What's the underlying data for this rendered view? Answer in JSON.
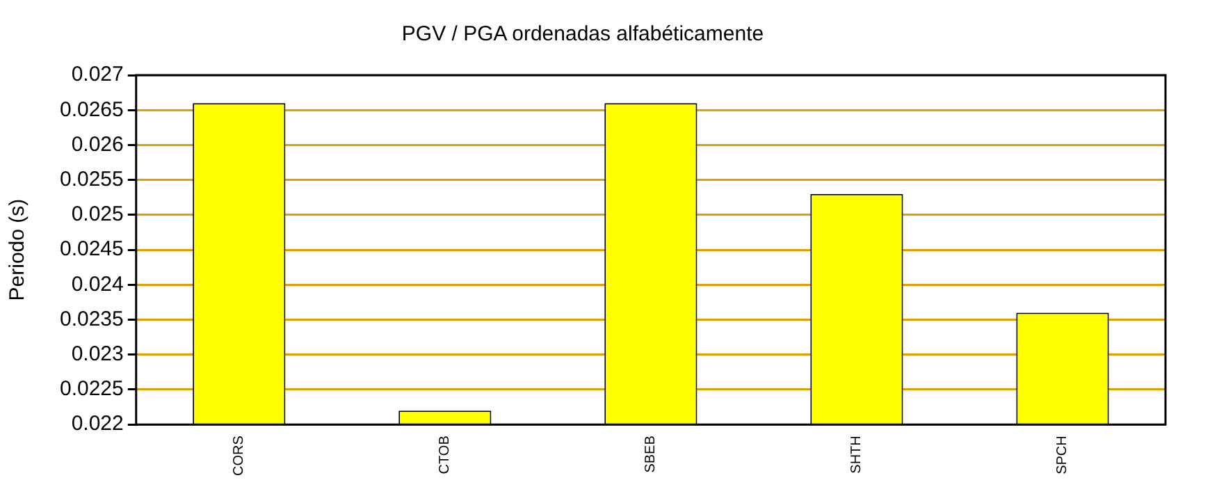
{
  "chart_data": {
    "type": "bar",
    "title": "PGV / PGA ordenadas alfabéticamente",
    "ylabel": "Periodo (s)",
    "categories": [
      "CORS",
      "CTOB",
      "SBEB",
      "SHTH",
      "SPCH"
    ],
    "series": [
      {
        "color": "#ffff00",
        "values": [
          0.0266,
          0.0222,
          0.0266,
          0.0253,
          0.0236
        ]
      }
    ],
    "ylim": [
      0.022,
      0.027
    ],
    "yticks": [
      0.022,
      0.0225,
      0.023,
      0.0235,
      0.024,
      0.0245,
      0.025,
      0.0255,
      0.026,
      0.0265,
      0.027
    ],
    "grid": "y",
    "legend": false
  }
}
